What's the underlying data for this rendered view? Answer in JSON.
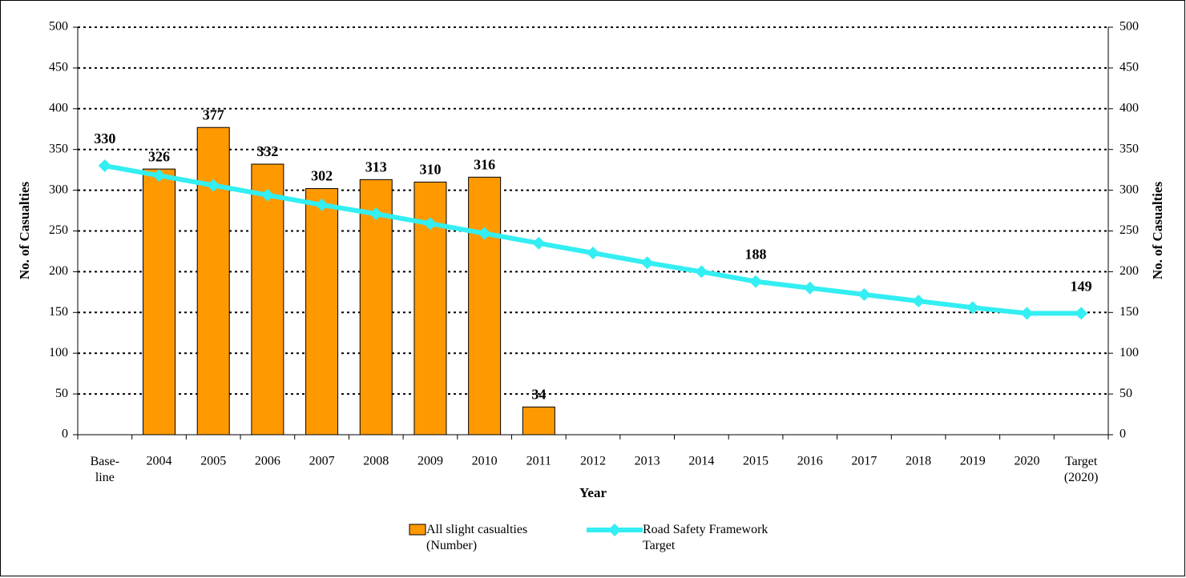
{
  "chart_data": {
    "type": "bar_line",
    "categories": [
      "Base-\nline",
      "2004",
      "2005",
      "2006",
      "2007",
      "2008",
      "2009",
      "2010",
      "2011",
      "2012",
      "2013",
      "2014",
      "2015",
      "2016",
      "2017",
      "2018",
      "2019",
      "2020",
      "Target\n(2020)"
    ],
    "x_label": "Year",
    "y_label": "No. of Casualties",
    "y2_label": "No. of Casualties",
    "ylim": [
      0,
      500
    ],
    "yticks": [
      0,
      50,
      100,
      150,
      200,
      250,
      300,
      350,
      400,
      450,
      500
    ],
    "y2lim": [
      0,
      500
    ],
    "y2ticks": [
      0,
      50,
      100,
      150,
      200,
      250,
      300,
      350,
      400,
      450,
      500
    ],
    "grid": true,
    "legend": "bottom",
    "series": [
      {
        "name": "All slight casualties (Number)",
        "type": "bar",
        "color": "#ff9900",
        "values": [
          null,
          326,
          377,
          332,
          302,
          313,
          310,
          316,
          34,
          null,
          null,
          null,
          null,
          null,
          null,
          null,
          null,
          null,
          null
        ]
      },
      {
        "name": "Road Safety Framework Target",
        "type": "line",
        "color": "#33eef2",
        "values": [
          330,
          318,
          306,
          294,
          282,
          271,
          259,
          247,
          235,
          223,
          211,
          200,
          188,
          180,
          172,
          164,
          156,
          149,
          149
        ],
        "value_labels": [
          "330",
          null,
          null,
          null,
          null,
          null,
          null,
          null,
          null,
          null,
          null,
          null,
          "188",
          null,
          null,
          null,
          null,
          null,
          "149"
        ]
      }
    ]
  }
}
